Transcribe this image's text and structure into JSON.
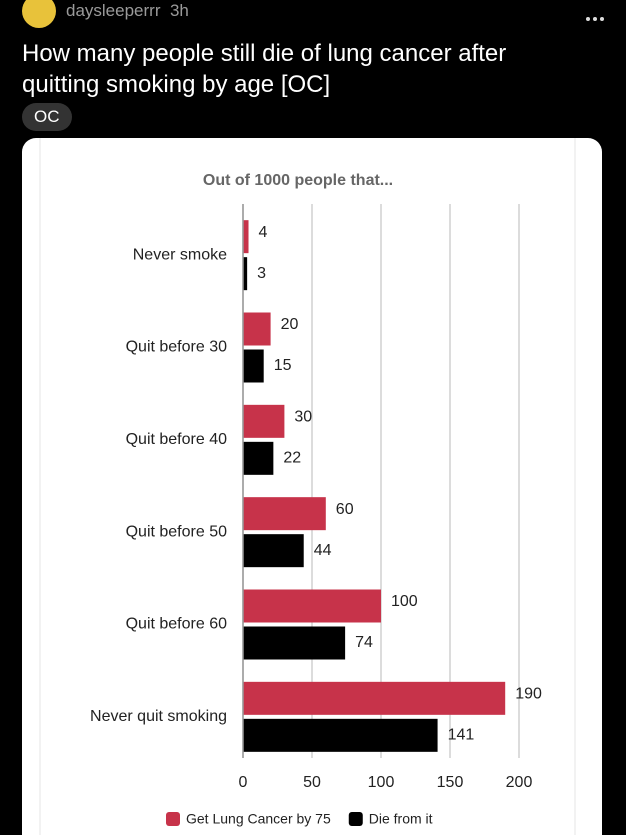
{
  "post": {
    "username": "daysleeperrr",
    "time": "3h",
    "title": "How many people still die of lung cancer after quitting smoking by age [OC]",
    "flair": "OC"
  },
  "chart_data": {
    "type": "bar",
    "orientation": "horizontal",
    "title": "Out of 1000 people that...",
    "categories": [
      "Never smoke",
      "Quit before 30",
      "Quit before 40",
      "Quit before 50",
      "Quit before 60",
      "Never quit smoking"
    ],
    "series": [
      {
        "name": "Get Lung Cancer by 75",
        "color": "#c7334a",
        "values": [
          4,
          20,
          30,
          60,
          100,
          190
        ]
      },
      {
        "name": "Die from it",
        "color": "#000000",
        "values": [
          3,
          15,
          22,
          44,
          74,
          141
        ]
      }
    ],
    "xlim": [
      0,
      200
    ],
    "xticks": [
      0,
      50,
      100,
      150,
      200
    ],
    "grid": true,
    "legend": "bottom"
  }
}
